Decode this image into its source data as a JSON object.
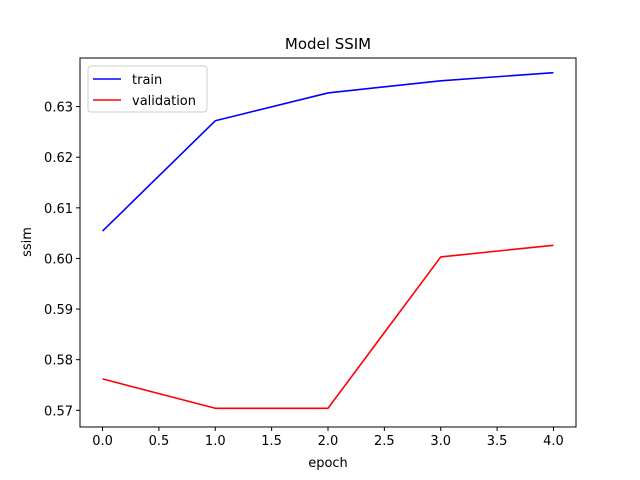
{
  "chart_data": {
    "type": "line",
    "title": "Model SSIM",
    "xlabel": "epoch",
    "ylabel": "ssim",
    "x": [
      0,
      1,
      2,
      3,
      4
    ],
    "xticks": [
      "0.0",
      "0.5",
      "1.0",
      "1.5",
      "2.0",
      "2.5",
      "3.0",
      "3.5",
      "4.0"
    ],
    "xtick_values": [
      0,
      0.5,
      1,
      1.5,
      2,
      2.5,
      3,
      3.5,
      4
    ],
    "yticks": [
      "0.57",
      "0.58",
      "0.59",
      "0.60",
      "0.61",
      "0.62",
      "0.63"
    ],
    "ytick_values": [
      0.57,
      0.58,
      0.59,
      0.6,
      0.61,
      0.62,
      0.63
    ],
    "xlim": [
      -0.2,
      4.2
    ],
    "ylim": [
      0.5667,
      0.6396
    ],
    "grid": false,
    "legend_position": "top-left",
    "series": [
      {
        "name": "train",
        "color": "#0000ff",
        "values": [
          0.6054,
          0.6272,
          0.6327,
          0.6351,
          0.6367
        ]
      },
      {
        "name": "validation",
        "color": "#ff0000",
        "values": [
          0.5762,
          0.5704,
          0.5704,
          0.6003,
          0.6026
        ]
      }
    ]
  }
}
